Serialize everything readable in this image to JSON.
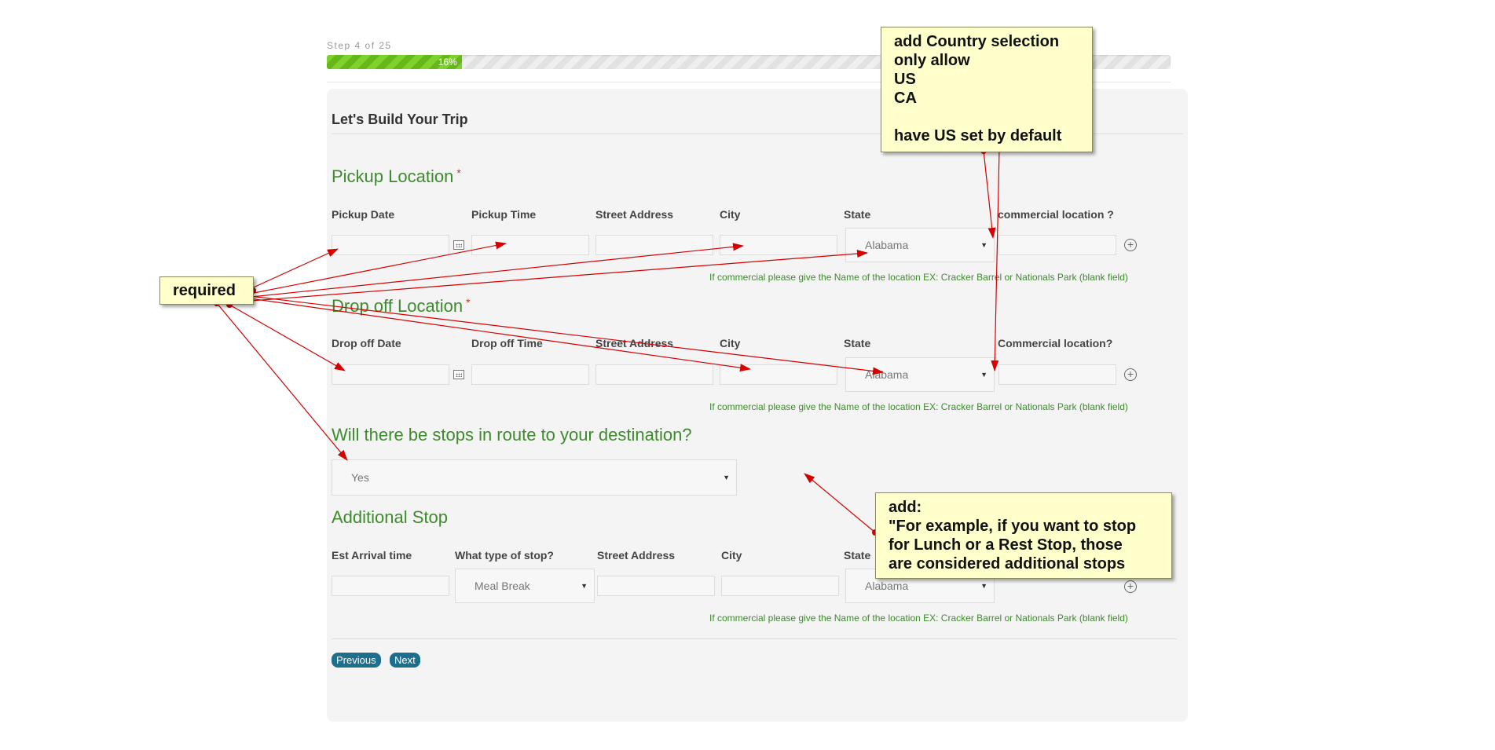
{
  "progress": {
    "step_label": "Step 4 of 25",
    "percent_label": "16%",
    "percent": 16
  },
  "form": {
    "title": "Let's Build Your Trip"
  },
  "pickup": {
    "title": "Pickup Location",
    "required_mark": "*",
    "labels": {
      "date": "Pickup Date",
      "time": "Pickup Time",
      "street": "Street Address",
      "city": "City",
      "state": "State",
      "commercial": "commercial location ?"
    },
    "state_value": "Alabama",
    "hint": "If commercial please give the Name of the location EX: Cracker Barrel or Nationals Park (blank field)"
  },
  "dropoff": {
    "title": "Drop off Location",
    "required_mark": "*",
    "labels": {
      "date": "Drop off Date",
      "time": "Drop off Time",
      "street": "Street Address",
      "city": "City",
      "state": "State",
      "commercial": "Commercial location?"
    },
    "state_value": "Alabama",
    "hint": "If commercial please give the Name of the location EX: Cracker Barrel or Nationals Park (blank field)"
  },
  "stops": {
    "question": "Will there be stops in route to your destination?",
    "value": "Yes"
  },
  "additional": {
    "title": "Additional Stop",
    "labels": {
      "arrival": "Est Arrival time",
      "type": "What type of stop?",
      "street": "Street Address",
      "city": "City",
      "state": "State"
    },
    "type_value": "Meal Break",
    "state_value": "Alabama",
    "hint": "If commercial please give the Name of the location EX: Cracker Barrel or Nationals Park (blank field)"
  },
  "buttons": {
    "previous": "Previous",
    "next": "Next"
  },
  "annotations": {
    "country": "add Country selection\nonly allow\nUS\nCA\n\nhave US set by default",
    "required": "required",
    "stops_example": "add:\n\"For example, if you want to stop\nfor Lunch or a Rest Stop, those\nare considered additional stops"
  },
  "colors": {
    "accent_green": "#3d8b2c",
    "button_blue": "#1e6f8d",
    "note_bg": "#ffffcc",
    "arrow_red": "#d40000",
    "progress_green": "#6fc31f"
  }
}
